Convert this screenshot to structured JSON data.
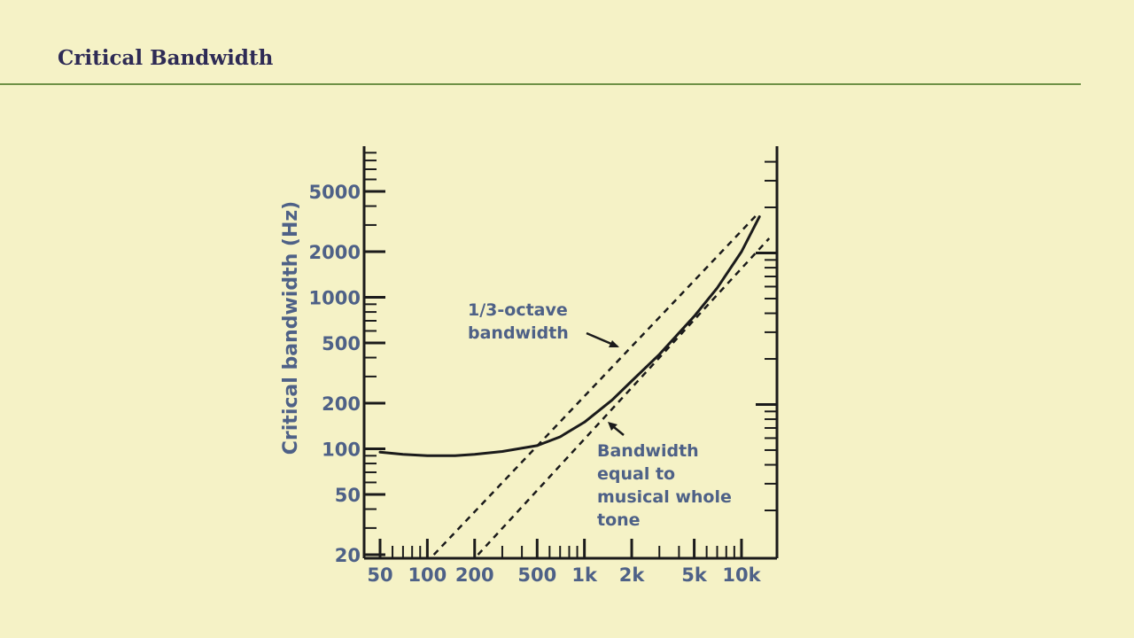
{
  "slide": {
    "title": "Critical Bandwidth"
  },
  "chart_data": {
    "type": "line",
    "title": "",
    "xlabel": "",
    "ylabel": "Critical bandwidth (Hz)",
    "xscale": "log",
    "yscale": "log",
    "xlim": [
      40,
      15000
    ],
    "ylim": [
      20,
      10000
    ],
    "x_ticks": [
      {
        "value": 50,
        "label": "50"
      },
      {
        "value": 100,
        "label": "100"
      },
      {
        "value": 200,
        "label": "200"
      },
      {
        "value": 500,
        "label": "500"
      },
      {
        "value": 1000,
        "label": "1k"
      },
      {
        "value": 2000,
        "label": "2k"
      },
      {
        "value": 5000,
        "label": "5k"
      },
      {
        "value": 10000,
        "label": "10k"
      }
    ],
    "y_ticks": [
      {
        "value": 20,
        "label": "20"
      },
      {
        "value": 50,
        "label": "50"
      },
      {
        "value": 100,
        "label": "100"
      },
      {
        "value": 200,
        "label": "200"
      },
      {
        "value": 500,
        "label": "500"
      },
      {
        "value": 1000,
        "label": "1000"
      },
      {
        "value": 2000,
        "label": "2000"
      },
      {
        "value": 5000,
        "label": "5000"
      }
    ],
    "series": [
      {
        "style": "solid",
        "x": [
          50,
          70,
          100,
          150,
          200,
          300,
          500,
          700,
          1000,
          1500,
          2000,
          3000,
          5000,
          7000,
          10000,
          13000
        ],
        "y": [
          95,
          92,
          90,
          90,
          92,
          96,
          105,
          120,
          150,
          210,
          280,
          420,
          750,
          1150,
          2000,
          3400
        ]
      },
      {
        "style": "dashed",
        "x": [
          110,
          12500
        ],
        "y": [
          20,
          3500
        ]
      },
      {
        "style": "dashed",
        "x": [
          210,
          15000
        ],
        "y": [
          20,
          2450
        ]
      }
    ],
    "annotations": [
      {
        "lines": [
          "1/3-octave",
          "bandwidth"
        ],
        "points_to": "dashed-upper"
      },
      {
        "lines": [
          "Bandwidth",
          "equal to",
          "musical whole",
          "tone"
        ],
        "points_to": "dashed-lower"
      }
    ]
  }
}
